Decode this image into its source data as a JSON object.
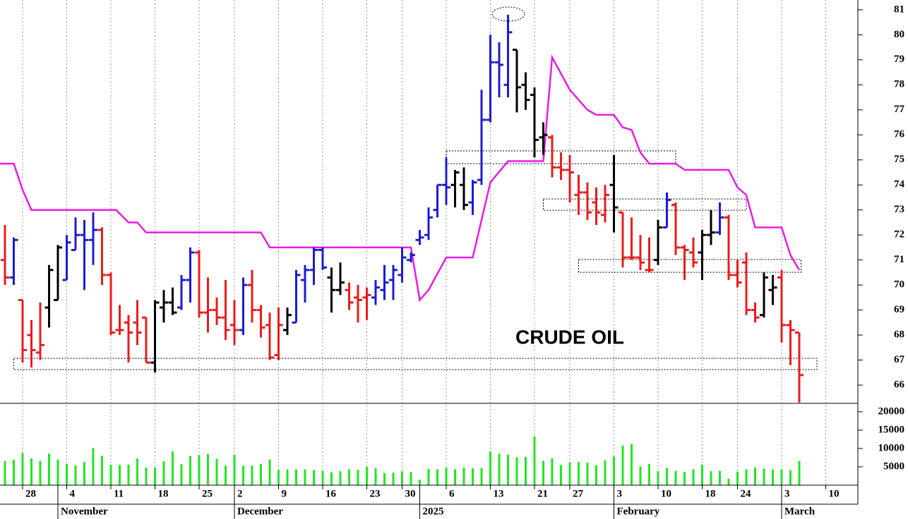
{
  "chart_data": {
    "type": "ohlc",
    "title": "CRUDE OIL",
    "xlim": [
      -0.56,
      96.64
    ],
    "ylim": [
      65.27,
      81.39
    ],
    "yticks": [
      66,
      67,
      68,
      69,
      70,
      71,
      72,
      73,
      74,
      75,
      76,
      77,
      78,
      79,
      80,
      81
    ],
    "xticks": [
      {
        "value": 2,
        "label": "28"
      },
      {
        "value": 7,
        "label": "4"
      },
      {
        "value": 12,
        "label": "11"
      },
      {
        "value": 17,
        "label": "18"
      },
      {
        "value": 22,
        "label": "25"
      },
      {
        "value": 26,
        "label": "2"
      },
      {
        "value": 31,
        "label": "9"
      },
      {
        "value": 36,
        "label": "16"
      },
      {
        "value": 41,
        "label": "23"
      },
      {
        "value": 45,
        "label": "30"
      },
      {
        "value": 50,
        "label": "6"
      },
      {
        "value": 55,
        "label": "13"
      },
      {
        "value": 60,
        "label": "21"
      },
      {
        "value": 64,
        "label": "27"
      },
      {
        "value": 69,
        "label": "3"
      },
      {
        "value": 74,
        "label": "10"
      },
      {
        "value": 79,
        "label": "18"
      },
      {
        "value": 83,
        "label": "24"
      },
      {
        "value": 88,
        "label": "3"
      },
      {
        "value": 93,
        "label": "10"
      }
    ],
    "month_ticks": [
      {
        "value": 6,
        "label": "November"
      },
      {
        "value": 26,
        "label": "December"
      },
      {
        "value": 47,
        "label": "2025"
      },
      {
        "value": 69,
        "label": "February"
      },
      {
        "value": 88,
        "label": "March"
      }
    ],
    "open": [
      71.0,
      70.3,
      69.4,
      68.0,
      67.3,
      69.1,
      69.4,
      70.2,
      71.4,
      72.0,
      71.8,
      72.2,
      70.4,
      68.2,
      68.5,
      68.5,
      68.7,
      66.9,
      69.1,
      69.3,
      69.1,
      70.2,
      71.3,
      68.9,
      69.0,
      68.7,
      68.4,
      68.2,
      70.0,
      69.0,
      68.4,
      67.2,
      68.2,
      68.5,
      70.2,
      70.6,
      71.4,
      70.3,
      69.8,
      69.8,
      69.5,
      69.5,
      69.5,
      69.8,
      70.2,
      70.4,
      71.0,
      71.8,
      72.0,
      73.0,
      74.0,
      74.0,
      74.0,
      73.3,
      74.2,
      76.6,
      78.9,
      78.0,
      79.4,
      78.0,
      77.6,
      75.9,
      75.9,
      74.7,
      74.6,
      73.6,
      73.7,
      73.3,
      72.8,
      74.0,
      72.9,
      71.1,
      71.1,
      70.6,
      71.0,
      72.3,
      73.2,
      71.5,
      71.3,
      71.3,
      72.0,
      72.1,
      72.7,
      70.4,
      70.9,
      69.0,
      68.8,
      69.8,
      70.3,
      68.4,
      68.1
    ],
    "high": [
      72.4,
      71.9,
      69.4,
      68.6,
      69.3,
      70.8,
      71.6,
      72.0,
      72.7,
      72.6,
      72.9,
      72.3,
      70.5,
      69.2,
      68.8,
      69.4,
      68.7,
      69.4,
      69.8,
      69.9,
      70.4,
      71.5,
      71.4,
      70.3,
      69.5,
      70.2,
      69.4,
      70.3,
      70.6,
      69.2,
      68.9,
      69.1,
      69.1,
      70.6,
      70.8,
      71.5,
      71.5,
      70.7,
      70.9,
      70.1,
      70.0,
      69.9,
      70.2,
      70.8,
      70.8,
      71.5,
      71.3,
      72.2,
      73.1,
      74.0,
      75.1,
      74.6,
      74.7,
      74.2,
      77.8,
      80.0,
      79.7,
      80.8,
      79.4,
      78.5,
      77.9,
      76.5,
      76.0,
      75.3,
      75.2,
      74.4,
      74.1,
      73.9,
      74.0,
      75.2,
      72.9,
      72.7,
      72.0,
      71.9,
      72.6,
      73.7,
      73.3,
      71.6,
      71.9,
      72.2,
      73.0,
      73.3,
      72.8,
      71.0,
      71.3,
      69.3,
      70.5,
      70.4,
      70.6,
      68.6,
      68.1
    ],
    "low": [
      70.0,
      70.0,
      66.9,
      66.7,
      67.0,
      68.3,
      69.4,
      70.2,
      71.4,
      69.8,
      70.8,
      70.0,
      68.0,
      68.0,
      66.9,
      67.6,
      66.9,
      66.5,
      68.5,
      68.8,
      69.0,
      69.3,
      68.7,
      68.1,
      68.4,
      67.8,
      67.6,
      68.0,
      68.5,
      67.9,
      67.0,
      67.0,
      68.0,
      68.5,
      69.3,
      70.0,
      70.6,
      68.9,
      69.6,
      69.0,
      68.5,
      68.6,
      69.2,
      69.4,
      69.4,
      70.1,
      70.9,
      71.6,
      71.8,
      72.7,
      73.2,
      73.1,
      73.0,
      72.8,
      74.0,
      76.5,
      77.5,
      77.5,
      76.9,
      77.0,
      75.1,
      75.2,
      74.3,
      74.2,
      73.3,
      72.8,
      72.6,
      72.4,
      72.5,
      72.1,
      70.7,
      71.0,
      70.6,
      70.5,
      70.8,
      72.3,
      71.2,
      70.2,
      70.7,
      70.2,
      71.6,
      72.0,
      70.2,
      69.9,
      68.8,
      68.5,
      68.7,
      69.2,
      67.7,
      66.8,
      65.3
    ],
    "close": [
      70.3,
      71.8,
      67.4,
      67.4,
      67.6,
      70.6,
      71.5,
      71.7,
      72.0,
      71.8,
      72.2,
      70.4,
      68.1,
      68.2,
      68.1,
      68.1,
      66.9,
      69.3,
      69.3,
      68.9,
      70.2,
      71.3,
      68.9,
      69.0,
      68.7,
      68.2,
      68.2,
      70.0,
      69.0,
      68.3,
      67.1,
      68.4,
      68.8,
      70.4,
      70.6,
      71.4,
      70.7,
      69.8,
      70.1,
      69.3,
      69.4,
      69.6,
      69.9,
      70.1,
      70.6,
      71.1,
      71.2,
      71.9,
      72.7,
      74.0,
      73.9,
      74.5,
      73.2,
      74.1,
      76.6,
      78.9,
      78.8,
      80.1,
      77.9,
      77.4,
      75.8,
      76.0,
      74.7,
      74.6,
      74.5,
      73.7,
      72.9,
      72.9,
      73.6,
      73.1,
      71.1,
      71.1,
      70.9,
      70.6,
      72.3,
      73.4,
      71.5,
      71.4,
      70.9,
      72.0,
      72.1,
      72.7,
      70.4,
      70.1,
      69.0,
      68.7,
      70.3,
      69.9,
      68.4,
      68.2,
      66.4
    ],
    "colors": [
      "#e81c1c",
      "#1c1cd0",
      "#e81c1c",
      "#e81c1c",
      "#e81c1c",
      "#000000",
      "#000000",
      "#1c1cd0",
      "#1c1cd0",
      "#1c1cd0",
      "#1c1cd0",
      "#e81c1c",
      "#e81c1c",
      "#e81c1c",
      "#e81c1c",
      "#e81c1c",
      "#e81c1c",
      "#000000",
      "#000000",
      "#000000",
      "#1c1cd0",
      "#1c1cd0",
      "#e81c1c",
      "#e81c1c",
      "#e81c1c",
      "#e81c1c",
      "#e81c1c",
      "#1c1cd0",
      "#e81c1c",
      "#e81c1c",
      "#e81c1c",
      "#e81c1c",
      "#000000",
      "#1c1cd0",
      "#1c1cd0",
      "#1c1cd0",
      "#1c1cd0",
      "#000000",
      "#000000",
      "#e81c1c",
      "#e81c1c",
      "#e81c1c",
      "#1c1cd0",
      "#1c1cd0",
      "#1c1cd0",
      "#1c1cd0",
      "#1c1cd0",
      "#1c1cd0",
      "#1c1cd0",
      "#1c1cd0",
      "#1c1cd0",
      "#000000",
      "#000000",
      "#1c1cd0",
      "#1c1cd0",
      "#1c1cd0",
      "#1c1cd0",
      "#1c1cd0",
      "#000000",
      "#000000",
      "#000000",
      "#000000",
      "#e81c1c",
      "#e81c1c",
      "#e81c1c",
      "#e81c1c",
      "#e81c1c",
      "#e81c1c",
      "#e81c1c",
      "#000000",
      "#e81c1c",
      "#e81c1c",
      "#e81c1c",
      "#e81c1c",
      "#000000",
      "#1c1cd0",
      "#e81c1c",
      "#e81c1c",
      "#e81c1c",
      "#000000",
      "#000000",
      "#1c1cd0",
      "#e81c1c",
      "#e81c1c",
      "#e81c1c",
      "#e81c1c",
      "#000000",
      "#000000",
      "#e81c1c",
      "#e81c1c",
      "#e81c1c"
    ],
    "stop_line": {
      "color": "#e81ce0",
      "x": [
        -0.56,
        1,
        2,
        3,
        12.6,
        14,
        15,
        16,
        29,
        30,
        46,
        47,
        48,
        50,
        53,
        55,
        57,
        61,
        62,
        64,
        66,
        67,
        69,
        70,
        71,
        72,
        73,
        76,
        77,
        82,
        83,
        84,
        85,
        88,
        89,
        90
      ],
      "values": [
        74.85,
        74.85,
        73.8,
        73.0,
        73.0,
        72.5,
        72.5,
        72.1,
        72.1,
        71.5,
        71.5,
        69.4,
        69.8,
        71.1,
        71.1,
        74.1,
        74.95,
        74.95,
        79.1,
        77.8,
        77.0,
        76.8,
        76.8,
        76.3,
        76.2,
        75.3,
        74.85,
        74.85,
        74.6,
        74.6,
        73.9,
        73.6,
        72.3,
        72.3,
        71.2,
        70.6
      ]
    },
    "zones": [
      {
        "x": [
          1,
          92
        ],
        "values": [
          66.62,
          67.07
        ]
      },
      {
        "x": [
          50,
          76
        ],
        "values": [
          74.85,
          75.36
        ]
      },
      {
        "x": [
          61,
          84
        ],
        "values": [
          72.99,
          73.44
        ]
      },
      {
        "x": [
          65,
          90.2
        ],
        "values": [
          70.51,
          71.02
        ]
      }
    ],
    "volume": {
      "color": "#22e622",
      "ylim": [
        0,
        22300
      ],
      "yticks": [
        5000,
        10000,
        15000,
        20000
      ],
      "values": [
        6600,
        6900,
        8800,
        7300,
        6600,
        8600,
        7000,
        5800,
        5400,
        6300,
        10100,
        8000,
        5600,
        5500,
        5600,
        7300,
        4800,
        4800,
        6500,
        9200,
        5700,
        7900,
        8200,
        8500,
        7200,
        5300,
        8300,
        5300,
        5300,
        5800,
        7000,
        4100,
        4300,
        4300,
        4300,
        4100,
        3900,
        3500,
        3800,
        4300,
        4200,
        5000,
        4600,
        3300,
        3400,
        3800,
        3600,
        1500,
        4400,
        4300,
        4800,
        4300,
        4800,
        4600,
        4700,
        9200,
        8600,
        8300,
        7600,
        7700,
        13300,
        6600,
        7300,
        5500,
        6200,
        6300,
        6100,
        5400,
        6800,
        7800,
        10800,
        11200,
        5100,
        5800,
        3800,
        4700,
        3900,
        3600,
        4300,
        5600,
        3800,
        3900,
        1800,
        3700,
        4300,
        4800,
        4500,
        4300,
        4300,
        4100,
        6600
      ]
    }
  }
}
